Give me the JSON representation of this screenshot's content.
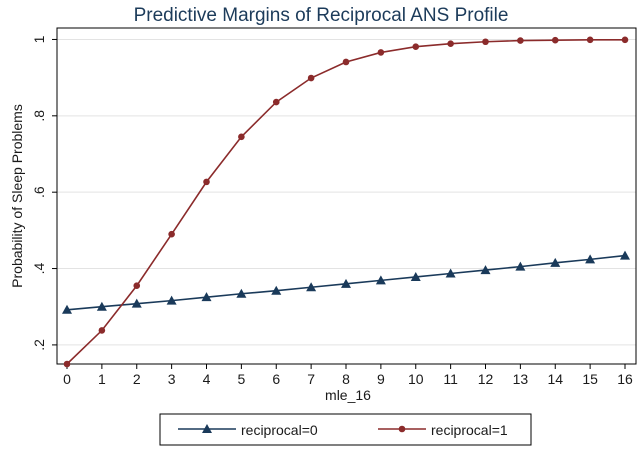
{
  "chart_data": {
    "type": "line",
    "title": "Predictive Margins of Reciprocal ANS Profile",
    "xlabel": "mle_16",
    "ylabel": "Probability of Sleep Problems",
    "x": [
      0,
      1,
      2,
      3,
      4,
      5,
      6,
      7,
      8,
      9,
      10,
      11,
      12,
      13,
      14,
      15,
      16
    ],
    "xlim": [
      0,
      16
    ],
    "ylim": [
      0.15,
      1.03
    ],
    "yticks": [
      0.2,
      0.4,
      0.6,
      0.8,
      1
    ],
    "ytick_labels": [
      ".2",
      ".4",
      ".6",
      ".8",
      "1"
    ],
    "xtick_labels": [
      "0",
      "1",
      "2",
      "3",
      "4",
      "5",
      "6",
      "7",
      "8",
      "9",
      "10",
      "11",
      "12",
      "13",
      "14",
      "15",
      "16"
    ],
    "grid": true,
    "legend_position": "bottom",
    "series": [
      {
        "name": "reciprocal=0",
        "marker": "triangle",
        "color": "#1a3a5a",
        "values": [
          0.292,
          0.3,
          0.308,
          0.316,
          0.325,
          0.334,
          0.342,
          0.351,
          0.36,
          0.369,
          0.378,
          0.387,
          0.396,
          0.405,
          0.415,
          0.424,
          0.434
        ]
      },
      {
        "name": "reciprocal=1",
        "marker": "circle",
        "color": "#8b2b2b",
        "values": [
          0.15,
          0.238,
          0.355,
          0.49,
          0.627,
          0.745,
          0.836,
          0.899,
          0.941,
          0.966,
          0.981,
          0.989,
          0.994,
          0.997,
          0.998,
          0.999,
          0.999
        ]
      }
    ]
  }
}
